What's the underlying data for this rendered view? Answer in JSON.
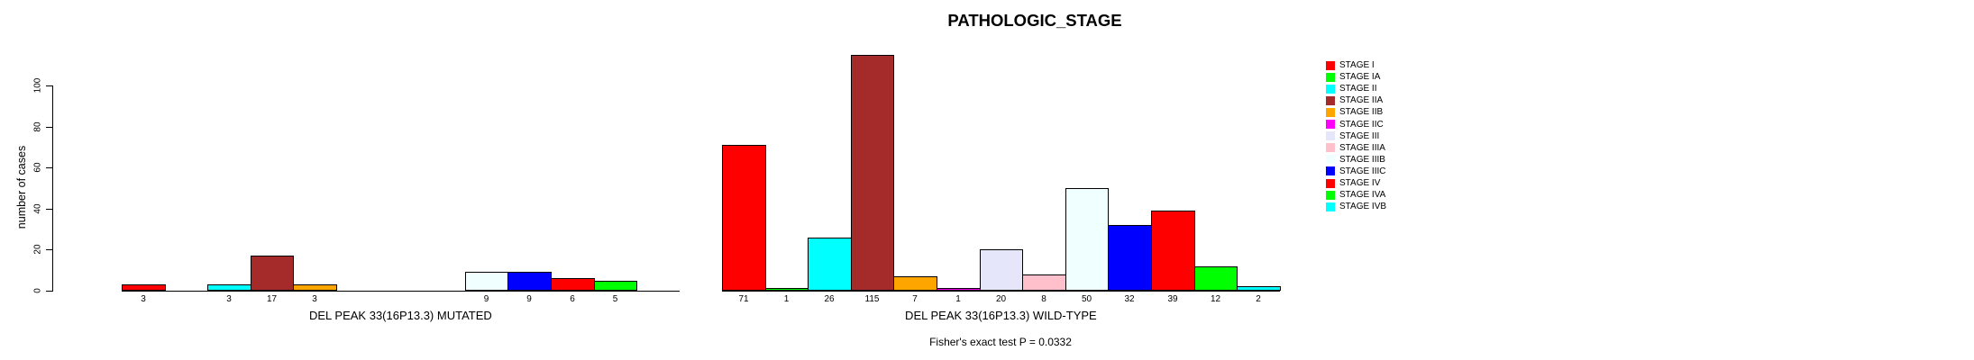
{
  "chart_data": {
    "type": "bar",
    "title": "PATHOLOGIC_STAGE",
    "ylabel": "number of cases",
    "ylim": [
      0,
      115
    ],
    "yticks": [
      0,
      20,
      40,
      60,
      80,
      100
    ],
    "grid": false,
    "legend_position": "right",
    "categories": [
      "STAGE I",
      "STAGE IA",
      "STAGE II",
      "STAGE IIA",
      "STAGE IIB",
      "STAGE IIC",
      "STAGE III",
      "STAGE IIIA",
      "STAGE IIIB",
      "STAGE IIIC",
      "STAGE IV",
      "STAGE IVA",
      "STAGE IVB"
    ],
    "colors": [
      "#FF0000",
      "#00FF00",
      "#00FFFF",
      "#A52A2A",
      "#FFA500",
      "#FF00FF",
      "#E6E6FA",
      "#FFC0CB",
      "#F0FFFF",
      "#0000FF",
      "#FF0000",
      "#00FF00",
      "#00FFFF"
    ],
    "series": [
      {
        "name": "DEL PEAK 33(16P13.3) MUTATED",
        "values": [
          3,
          0,
          3,
          17,
          3,
          0,
          0,
          0,
          9,
          9,
          6,
          5,
          0
        ]
      },
      {
        "name": "DEL PEAK 33(16P13.3) WILD-TYPE",
        "values": [
          71,
          1,
          26,
          115,
          7,
          1,
          20,
          8,
          50,
          32,
          39,
          12,
          2
        ]
      }
    ],
    "bar_value_labels_shown": true,
    "annotation": "Fisher's exact test P = 0.0332"
  }
}
